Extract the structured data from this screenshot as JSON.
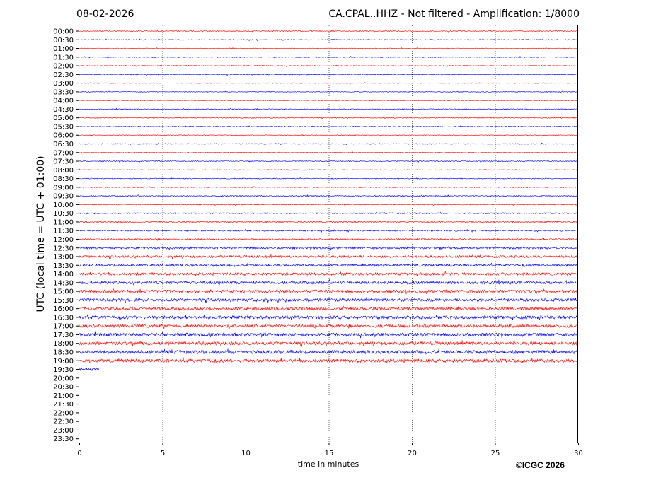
{
  "chart_data": {
    "type": "line",
    "date": "08-02-2026",
    "title": "CA.CPAL..HHZ - Not filtered - Amplification: 1/8000",
    "xlabel": "time in minutes",
    "ylabel": "UTC (local time = UTC + 01:00)",
    "xlim": [
      0,
      30
    ],
    "xticks": [
      0,
      5,
      10,
      15,
      20,
      25,
      30
    ],
    "grid_x": true,
    "rows": [
      "00:00",
      "00:30",
      "01:00",
      "01:30",
      "02:00",
      "02:30",
      "03:00",
      "03:30",
      "04:00",
      "04:30",
      "05:00",
      "05:30",
      "06:00",
      "06:30",
      "07:00",
      "07:30",
      "08:00",
      "08:30",
      "09:00",
      "09:30",
      "10:00",
      "10:30",
      "11:00",
      "11:30",
      "12:00",
      "12:30",
      "13:00",
      "13:30",
      "14:00",
      "14:30",
      "15:00",
      "15:30",
      "16:00",
      "16:30",
      "17:00",
      "17:30",
      "18:00",
      "18:30",
      "19:00",
      "19:30",
      "20:00",
      "20:30",
      "21:00",
      "21:30",
      "22:00",
      "22:30",
      "23:00",
      "23:30"
    ],
    "trace_colors": [
      "#ff0000",
      "#0000ff"
    ],
    "trace_end_minutes": [
      30,
      30,
      30,
      30,
      30,
      30,
      30,
      30,
      30,
      30,
      30,
      30,
      30,
      30,
      30,
      30,
      30,
      30,
      30,
      30,
      30,
      30,
      30,
      30,
      30,
      30,
      30,
      30,
      30,
      30,
      30,
      30,
      30,
      30,
      30,
      30,
      30,
      30,
      30,
      1.2,
      0,
      0,
      0,
      0,
      0,
      0,
      0,
      0
    ],
    "noise_level": [
      0.6,
      0.6,
      0.5,
      0.6,
      0.6,
      0.6,
      0.5,
      0.5,
      0.5,
      0.6,
      0.6,
      0.6,
      0.5,
      0.6,
      0.5,
      0.6,
      0.6,
      0.6,
      0.6,
      0.7,
      0.6,
      0.8,
      0.8,
      1.0,
      1.0,
      1.4,
      1.6,
      1.7,
      1.8,
      2.0,
      2.0,
      2.1,
      2.0,
      2.2,
      2.1,
      2.3,
      2.2,
      2.4,
      2.3,
      1.6,
      0,
      0,
      0,
      0,
      0,
      0,
      0,
      0
    ]
  },
  "copyright": "©ICGC 2026"
}
